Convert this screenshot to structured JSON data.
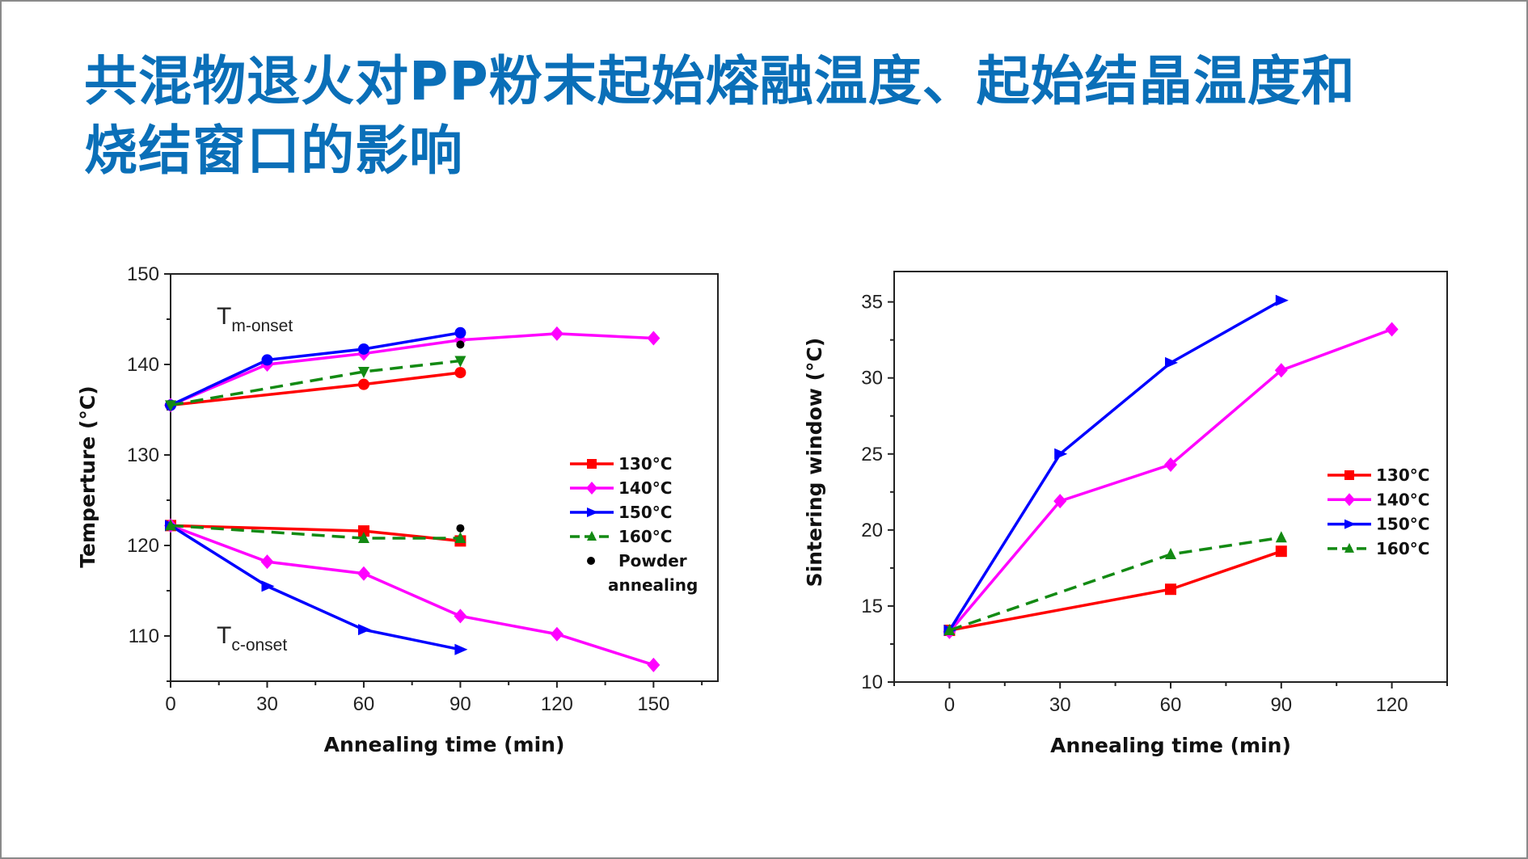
{
  "slide": {
    "title_line1": "共混物退火对PP粉末起始熔融温度、起始结晶温度和",
    "title_line2": "烧结窗口的影响",
    "title_color": "#0a6fb8"
  },
  "chart_data": [
    {
      "type": "line",
      "xlabel": "Annealing time (min)",
      "ylabel": "Temperture (°C)",
      "xlim": [
        0,
        170
      ],
      "ylim": [
        105,
        150
      ],
      "xticks": [
        0,
        30,
        60,
        90,
        120,
        150
      ],
      "yticks": [
        110,
        120,
        130,
        140,
        150
      ],
      "grid": false,
      "legend_placement": "right-middle",
      "annotations": [
        {
          "main": "T",
          "sub": "m-onset"
        },
        {
          "main": "T",
          "sub": "c-onset"
        }
      ],
      "legend": [
        {
          "name": "130°C",
          "color": "#ff0000",
          "marker": "square",
          "dash": false
        },
        {
          "name": "140°C",
          "color": "#ff00ff",
          "marker": "diamond",
          "dash": false
        },
        {
          "name": "150°C",
          "color": "#0000ff",
          "marker": "triangle-right",
          "dash": false
        },
        {
          "name": "160°C",
          "color": "#138a13",
          "marker": "triangle-up",
          "dash": true
        },
        {
          "name": "Powder",
          "name2": "annealing",
          "color": "#000000",
          "marker": "circle"
        }
      ],
      "series": [
        {
          "group": "Tm-onset",
          "legend": 0,
          "marker": "circle",
          "x": [
            0,
            60,
            90
          ],
          "y": [
            135.5,
            137.8,
            139.1
          ]
        },
        {
          "group": "Tm-onset",
          "legend": 1,
          "x": [
            0,
            30,
            60,
            90,
            120,
            150
          ],
          "y": [
            135.5,
            140.0,
            141.2,
            142.7,
            143.4,
            142.9
          ]
        },
        {
          "group": "Tm-onset",
          "legend": 2,
          "marker": "circle",
          "x": [
            0,
            30,
            60,
            90
          ],
          "y": [
            135.5,
            140.5,
            141.7,
            143.5
          ]
        },
        {
          "group": "Tm-onset",
          "legend": 3,
          "marker": "triangle-down",
          "x": [
            0,
            60,
            90
          ],
          "y": [
            135.5,
            139.2,
            140.4
          ]
        },
        {
          "group": "Tc-onset",
          "legend": 0,
          "x": [
            0,
            60,
            90
          ],
          "y": [
            122.2,
            121.6,
            120.5
          ]
        },
        {
          "group": "Tc-onset",
          "legend": 1,
          "x": [
            0,
            30,
            60,
            90,
            120,
            150
          ],
          "y": [
            122.2,
            118.2,
            116.9,
            112.2,
            110.2,
            106.8
          ]
        },
        {
          "group": "Tc-onset",
          "legend": 2,
          "x": [
            0,
            30,
            60,
            90
          ],
          "y": [
            122.2,
            115.5,
            110.7,
            108.5
          ]
        },
        {
          "group": "Tc-onset",
          "legend": 3,
          "x": [
            0,
            60,
            90
          ],
          "y": [
            122.2,
            120.8,
            120.8
          ]
        },
        {
          "group": "Powder annealing",
          "legend": 4,
          "noline": true,
          "x": [
            90,
            90
          ],
          "y": [
            142.2,
            121.9
          ]
        }
      ]
    },
    {
      "type": "line",
      "xlabel": "Annealing time (min)",
      "ylabel": "Sintering window (°C)",
      "xlim": [
        -15,
        135
      ],
      "ylim": [
        10,
        37
      ],
      "xticks": [
        0,
        30,
        60,
        90,
        120
      ],
      "yticks": [
        10,
        15,
        20,
        25,
        30,
        35
      ],
      "grid": false,
      "legend_placement": "right-middle",
      "legend": [
        {
          "name": "130°C",
          "color": "#ff0000",
          "marker": "square",
          "dash": false
        },
        {
          "name": "140°C",
          "color": "#ff00ff",
          "marker": "diamond",
          "dash": false
        },
        {
          "name": "150°C",
          "color": "#0000ff",
          "marker": "triangle-right",
          "dash": false
        },
        {
          "name": "160°C",
          "color": "#138a13",
          "marker": "triangle-up",
          "dash": true
        }
      ],
      "series": [
        {
          "legend": 0,
          "x": [
            0,
            60,
            90
          ],
          "y": [
            13.4,
            16.1,
            18.6
          ]
        },
        {
          "legend": 1,
          "x": [
            0,
            30,
            60,
            90,
            120
          ],
          "y": [
            13.3,
            21.9,
            24.3,
            30.5,
            33.2
          ]
        },
        {
          "legend": 2,
          "x": [
            0,
            30,
            60,
            90
          ],
          "y": [
            13.4,
            25.0,
            31.0,
            35.1
          ]
        },
        {
          "legend": 3,
          "x": [
            0,
            60,
            90
          ],
          "y": [
            13.4,
            18.4,
            19.5
          ]
        }
      ]
    }
  ]
}
